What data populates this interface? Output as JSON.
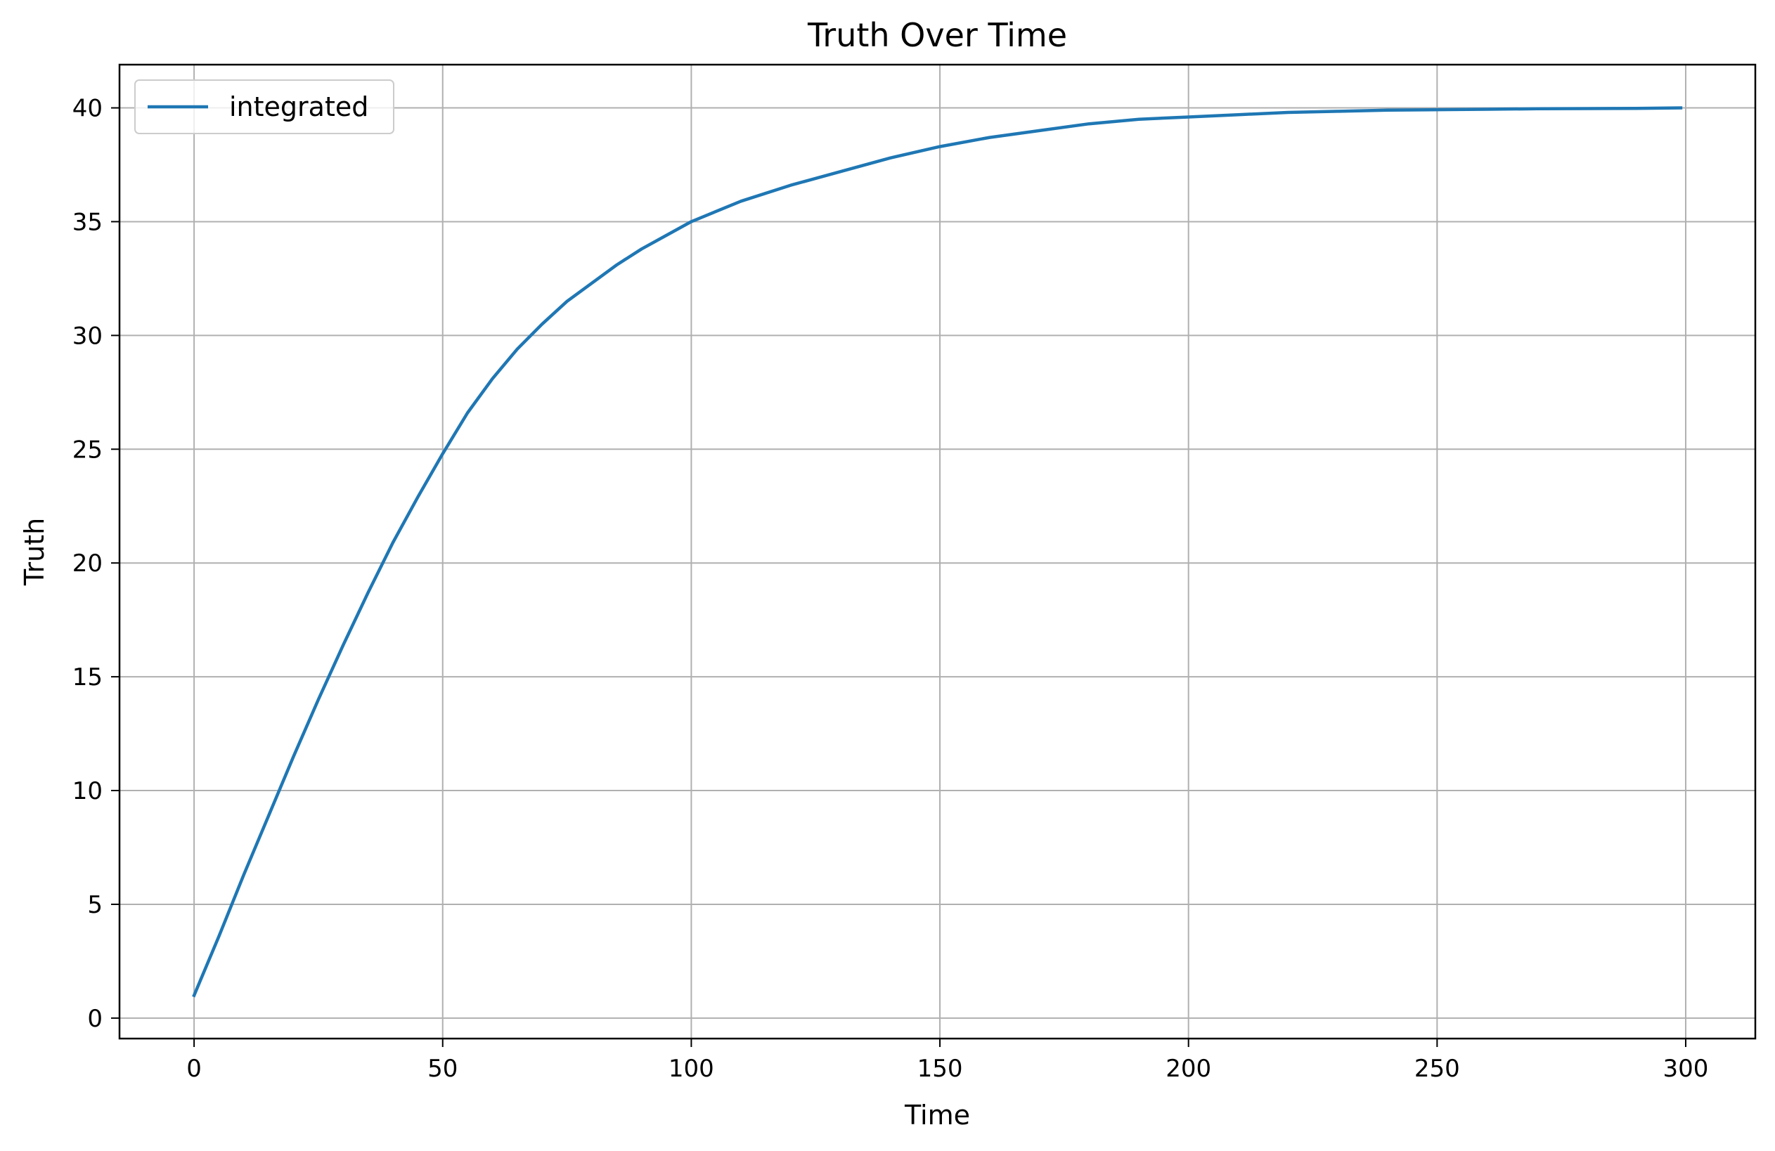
{
  "chart_data": {
    "type": "line",
    "title": "Truth Over Time",
    "xlabel": "Time",
    "ylabel": "Truth",
    "xlim": [
      -15,
      314
    ],
    "ylim": [
      -0.9,
      41.9
    ],
    "x_ticks": [
      0,
      50,
      100,
      150,
      200,
      250,
      300
    ],
    "y_ticks": [
      0,
      5,
      10,
      15,
      20,
      25,
      30,
      35,
      40
    ],
    "grid": true,
    "legend_position": "top-left",
    "series": [
      {
        "name": "integrated",
        "color": "#1f77b4",
        "x": [
          0,
          5,
          10,
          15,
          20,
          25,
          30,
          35,
          40,
          45,
          50,
          55,
          60,
          65,
          70,
          75,
          80,
          85,
          90,
          95,
          100,
          110,
          120,
          130,
          140,
          150,
          160,
          170,
          180,
          190,
          200,
          210,
          220,
          230,
          240,
          250,
          260,
          270,
          280,
          290,
          299
        ],
        "y": [
          1.0,
          3.6,
          6.3,
          8.9,
          11.5,
          14.0,
          16.4,
          18.7,
          20.9,
          22.9,
          24.8,
          26.6,
          28.1,
          29.4,
          30.5,
          31.5,
          32.3,
          33.1,
          33.8,
          34.4,
          35.0,
          35.9,
          36.6,
          37.2,
          37.8,
          38.3,
          38.7,
          39.0,
          39.3,
          39.5,
          39.6,
          39.7,
          39.8,
          39.85,
          39.9,
          39.92,
          39.94,
          39.96,
          39.97,
          39.98,
          40.0
        ]
      }
    ]
  }
}
